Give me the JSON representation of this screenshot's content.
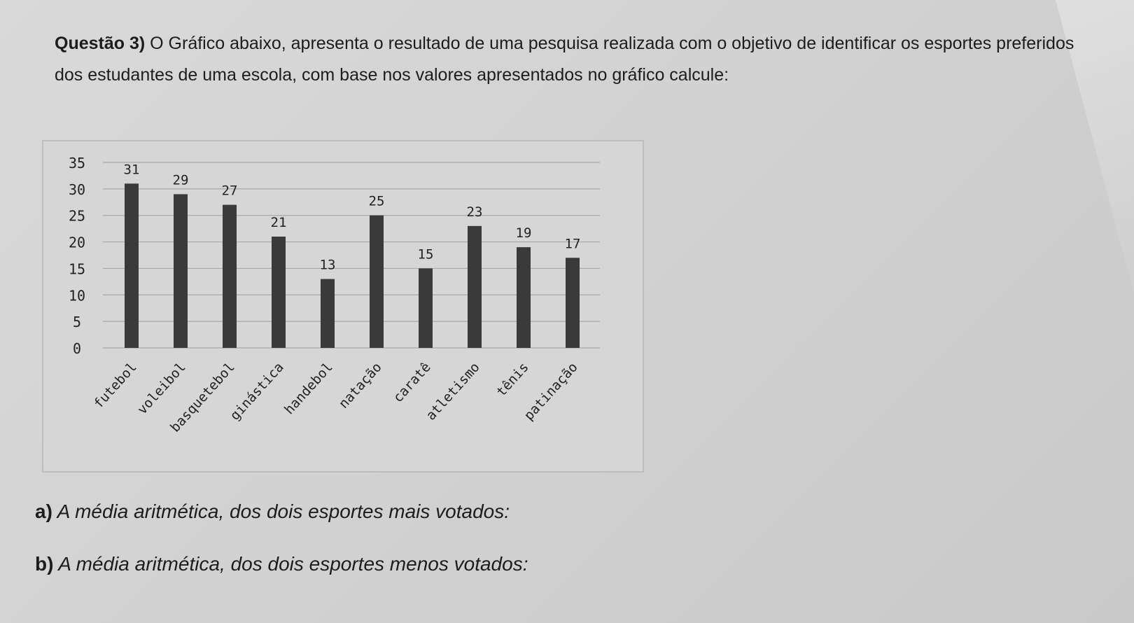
{
  "question": {
    "label": "Questão 3)",
    "text": "O Gráfico abaixo, apresenta o resultado de uma pesquisa realizada com o objetivo de identificar os esportes preferidos dos estudantes de uma escola, com base nos valores apresentados no gráfico calcule:"
  },
  "items": [
    {
      "letter": "a)",
      "text": "A média aritmética, dos dois esportes mais votados:"
    },
    {
      "letter": "b)",
      "text": "A média aritmética, dos dois esportes menos votados:"
    }
  ],
  "chart_data": {
    "type": "bar",
    "categories": [
      "futebol",
      "voleibol",
      "basquetebol",
      "ginástica",
      "handebol",
      "natação",
      "caratê",
      "atletismo",
      "tênis",
      "patinação"
    ],
    "values": [
      31,
      29,
      27,
      21,
      13,
      25,
      15,
      23,
      19,
      17
    ],
    "yticks": [
      "0",
      "5",
      "10",
      "15",
      "20",
      "25",
      "30",
      "35"
    ],
    "ylim": [
      0,
      35
    ],
    "grid": true,
    "bar_color": "#3a3a3a",
    "grid_color": "#a8a8a8"
  }
}
